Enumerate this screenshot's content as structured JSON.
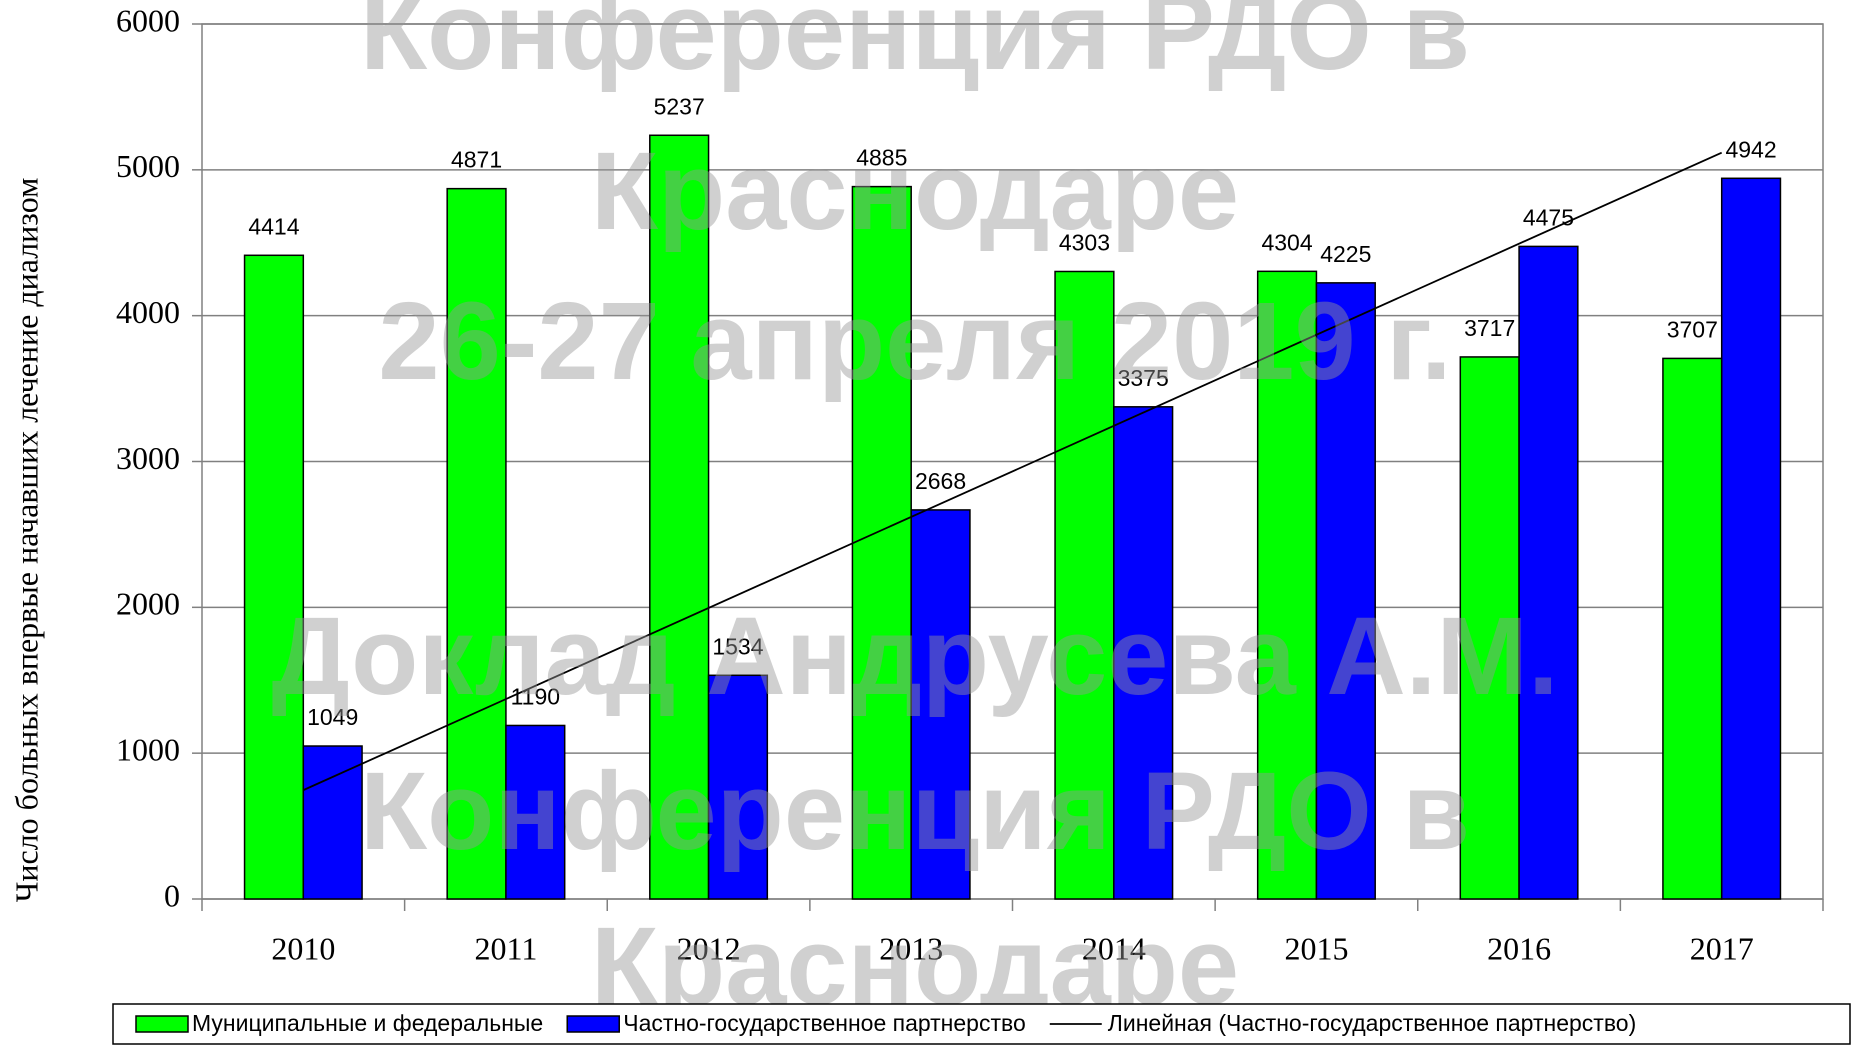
{
  "chart_data": {
    "type": "bar",
    "ylabel": "Число больных впервые начавших лечение диализом",
    "categories": [
      "2010",
      "2011",
      "2012",
      "2013",
      "2014",
      "2015",
      "2016",
      "2017"
    ],
    "series": [
      {
        "name": "Муниципальные и федеральные",
        "color": "#00ff00",
        "values": [
          4414,
          4871,
          5237,
          4885,
          4303,
          4304,
          3717,
          3707
        ]
      },
      {
        "name": "Частно-государственное партнерство",
        "color": "#0000ff",
        "values": [
          1049,
          1190,
          1534,
          2668,
          3375,
          4225,
          4475,
          4942
        ]
      }
    ],
    "trendline": {
      "name": "Линейная (Частно-государственное партнерство)",
      "series": 1,
      "kind": "linear",
      "color": "#000000"
    },
    "ylim": [
      0,
      6000
    ],
    "yticks": [
      0,
      1000,
      2000,
      3000,
      4000,
      5000,
      6000
    ],
    "grid": true,
    "legend": "bottom",
    "watermark": [
      "Конференция РДО в",
      "Краснодаре",
      "26-27 апреля 2019 г.",
      "Доклад Андрусева А.М.",
      "Конференция РДО в",
      "Краснодаре"
    ]
  }
}
